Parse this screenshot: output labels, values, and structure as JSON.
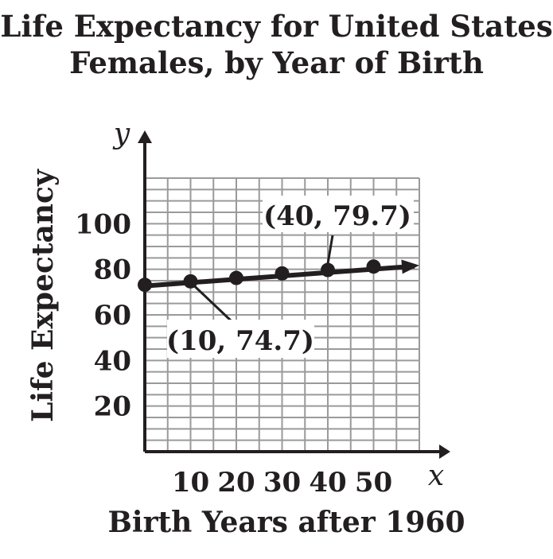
{
  "chart_data": {
    "type": "line",
    "title_line1": "Life Expectancy for United States",
    "title_line2": "Females, by Year of Birth",
    "xlabel": "Birth Years after 1960",
    "ylabel": "Life Expectancy",
    "x_axis_var": "x",
    "y_axis_var": "y",
    "xlim": [
      0,
      60
    ],
    "ylim": [
      0,
      120
    ],
    "x_ticks": [
      10,
      20,
      30,
      40,
      50
    ],
    "y_ticks": [
      20,
      40,
      60,
      80,
      100
    ],
    "grid": true,
    "points": [
      {
        "x": 0,
        "y": 73.2
      },
      {
        "x": 10,
        "y": 74.7
      },
      {
        "x": 20,
        "y": 76.2
      },
      {
        "x": 30,
        "y": 78.2
      },
      {
        "x": 40,
        "y": 79.7
      },
      {
        "x": 50,
        "y": 81.2
      }
    ],
    "trend_line": {
      "x0": 0,
      "y0": 72.7,
      "x1": 60,
      "y1": 81.7
    },
    "annotations": [
      {
        "text": "(10, 74.7)",
        "x": 10,
        "y": 74.7
      },
      {
        "text": "(40, 79.7)",
        "x": 40,
        "y": 79.7
      }
    ],
    "colors": {
      "ink": "#231f20",
      "grid": "#9a9a9a"
    }
  }
}
